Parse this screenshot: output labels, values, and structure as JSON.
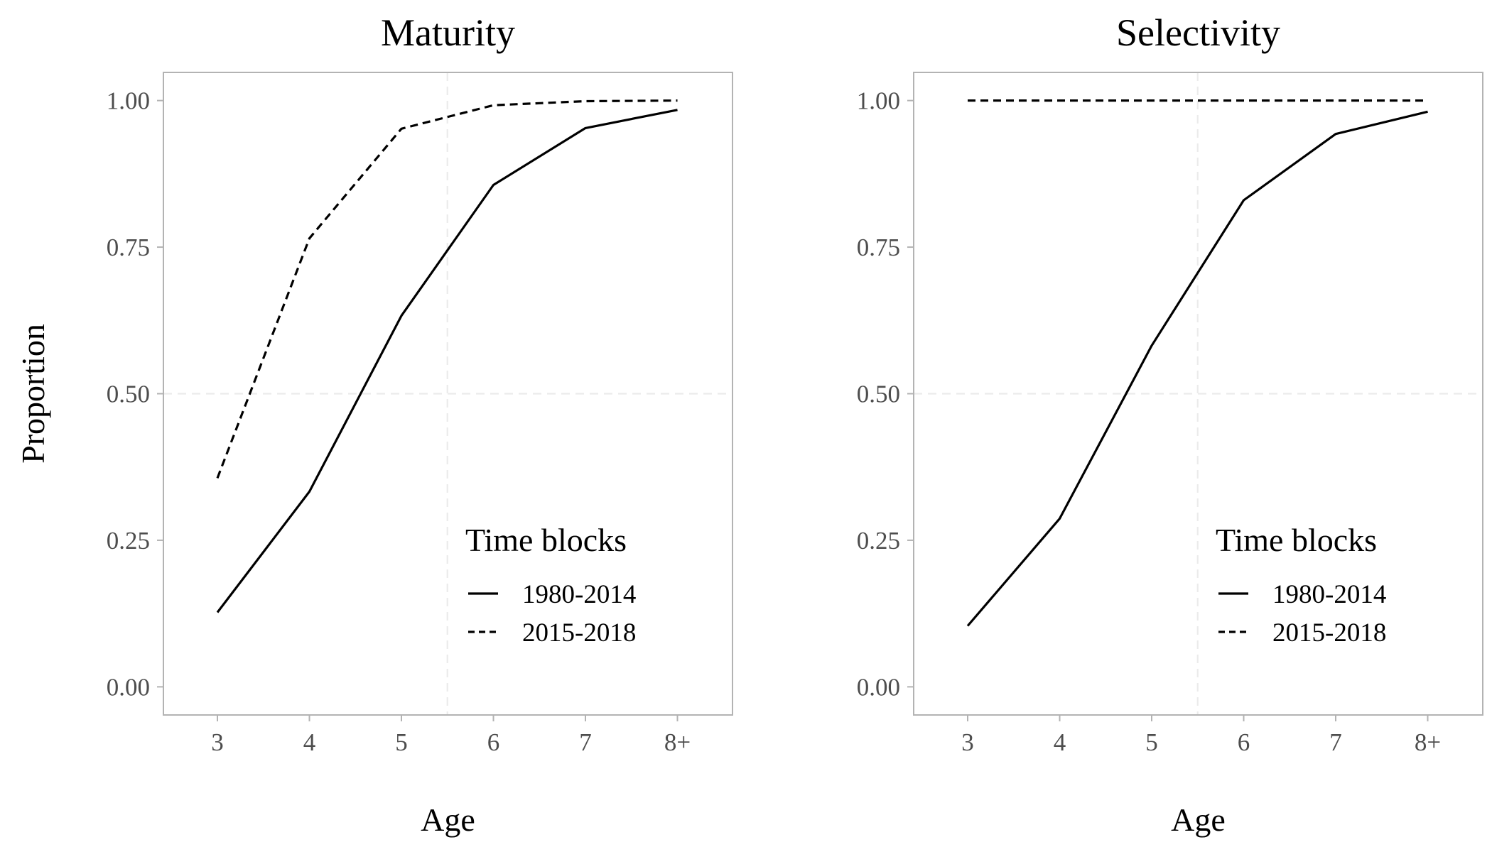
{
  "chart_data": [
    {
      "type": "line",
      "title": "Maturity",
      "xlabel": "Age",
      "ylabel": "Proportion",
      "categories": [
        "3",
        "4",
        "5",
        "6",
        "7",
        "8+"
      ],
      "ylim": [
        -0.048,
        1.048
      ],
      "yticks": [
        0,
        0.25,
        0.5,
        0.75,
        1
      ],
      "ytick_labels": [
        "0.00",
        "0.25",
        "0.50",
        "0.75",
        "1.00"
      ],
      "grid": true,
      "grid_x": [
        5.5
      ],
      "grid_y": [
        0.5
      ],
      "legend": {
        "title": "Time blocks",
        "position": "bottom-right"
      },
      "series": [
        {
          "name": "1980-2014",
          "linetype": "solid",
          "values": [
            0.127,
            0.333,
            0.633,
            0.856,
            0.953,
            0.984
          ]
        },
        {
          "name": "2015-2018",
          "linetype": "dashed",
          "values": [
            0.356,
            0.765,
            0.952,
            0.992,
            0.999,
            1.0
          ]
        }
      ]
    },
    {
      "type": "line",
      "title": "Selectivity",
      "xlabel": "Age",
      "ylabel": "",
      "categories": [
        "3",
        "4",
        "5",
        "6",
        "7",
        "8+"
      ],
      "ylim": [
        -0.048,
        1.048
      ],
      "yticks": [
        0,
        0.25,
        0.5,
        0.75,
        1
      ],
      "ytick_labels": [
        "0.00",
        "0.25",
        "0.50",
        "0.75",
        "1.00"
      ],
      "grid": true,
      "grid_x": [
        5.5
      ],
      "grid_y": [
        0.5
      ],
      "legend": {
        "title": "Time blocks",
        "position": "bottom-right"
      },
      "series": [
        {
          "name": "1980-2014",
          "linetype": "solid",
          "values": [
            0.104,
            0.287,
            0.582,
            0.83,
            0.943,
            0.981
          ]
        },
        {
          "name": "2015-2018",
          "linetype": "dashed",
          "values": [
            1.0,
            1.0,
            1.0,
            1.0,
            1.0,
            1.0
          ]
        }
      ]
    }
  ]
}
